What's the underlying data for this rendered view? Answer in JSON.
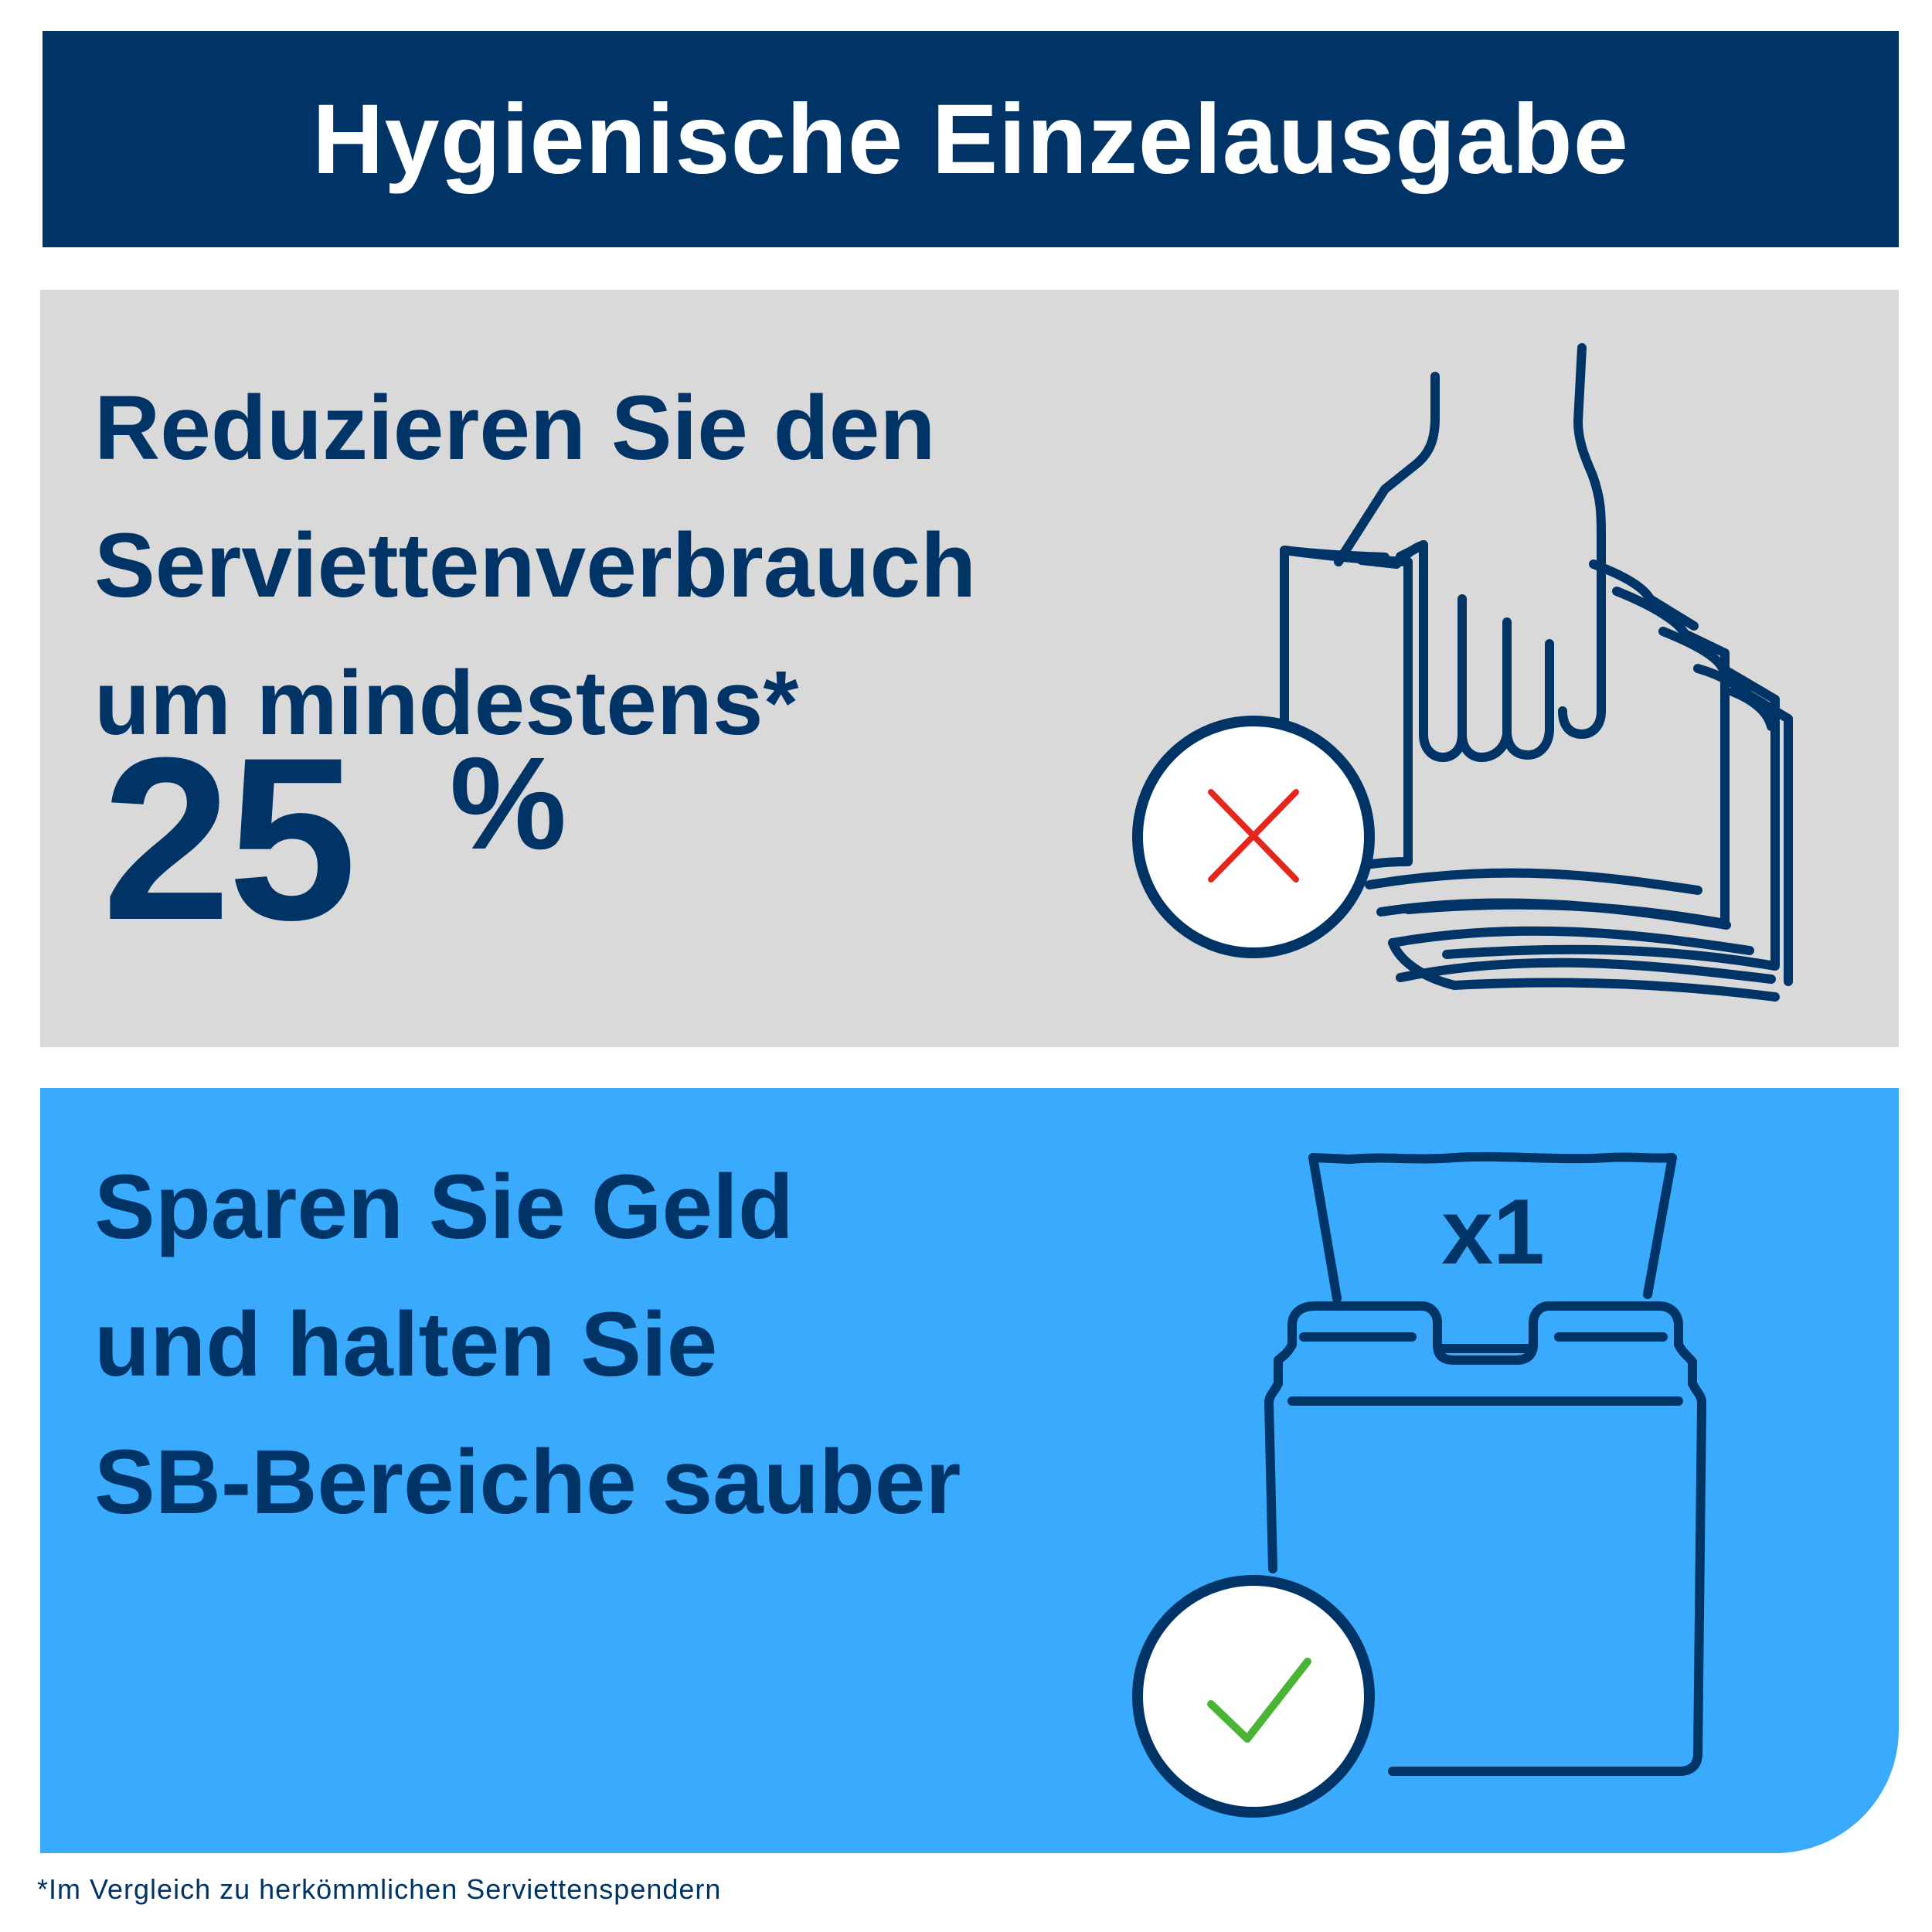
{
  "header": {
    "title": "Hygienische Einzelausgabe"
  },
  "reduce_panel": {
    "lines": [
      "Reduzieren Sie den",
      "Serviettenverbrauch",
      "um mindestens*"
    ],
    "percent_value": "25",
    "percent_sign": "%",
    "status_icon": "x-mark-icon"
  },
  "save_panel": {
    "lines": [
      "Sparen Sie Geld",
      "und halten Sie",
      "SB-Bereiche sauber"
    ],
    "dispenser_label": "x1",
    "status_icon": "check-mark-icon"
  },
  "footnote": "*Im Vergleich zu herkömmlichen Serviettenspendern",
  "colors": {
    "navy": "#003366",
    "gray_panel": "#d9d9d9",
    "blue_panel": "#3aaafd",
    "x_red": "#e4261c",
    "check_green": "#4ab535"
  }
}
